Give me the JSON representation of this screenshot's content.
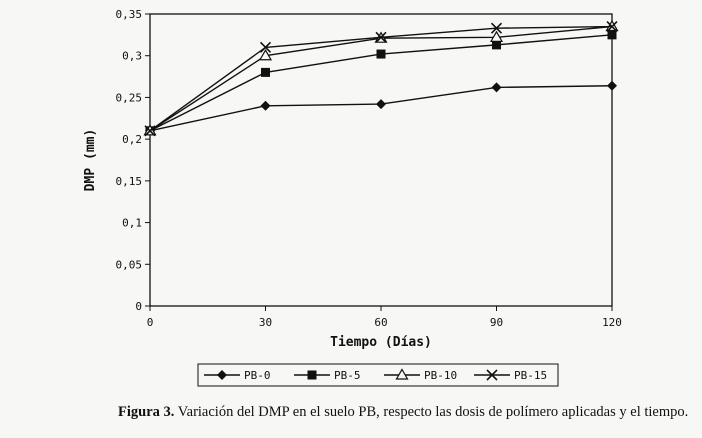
{
  "chart_data": {
    "type": "line",
    "x": [
      0,
      30,
      60,
      90,
      120
    ],
    "xticks": [
      "0",
      "30",
      "60",
      "90",
      "120"
    ],
    "yticks": [
      "0",
      "0,05",
      "0,1",
      "0,15",
      "0,2",
      "0,25",
      "0,3",
      "0,35"
    ],
    "xlim": [
      0,
      120
    ],
    "ylim": [
      0,
      0.35
    ],
    "xlabel": "Tiempo (Días)",
    "ylabel": "DMP (mm)",
    "grid": false,
    "legend_position": "bottom",
    "series": [
      {
        "name": "PB-0",
        "marker": "diamond",
        "values": [
          0.21,
          0.24,
          0.242,
          0.262,
          0.264
        ]
      },
      {
        "name": "PB-5",
        "marker": "square",
        "values": [
          0.21,
          0.28,
          0.302,
          0.313,
          0.325
        ]
      },
      {
        "name": "PB-10",
        "marker": "triangle",
        "values": [
          0.21,
          0.3,
          0.321,
          0.322,
          0.335
        ]
      },
      {
        "name": "PB-15",
        "marker": "x",
        "values": [
          0.21,
          0.31,
          0.322,
          0.333,
          0.335
        ]
      }
    ],
    "line_color": "#111111"
  },
  "caption": {
    "label": "Figura 3.",
    "text": "Variación del DMP en el suelo PB, respecto las dosis de polímero aplicadas y el tiempo."
  }
}
